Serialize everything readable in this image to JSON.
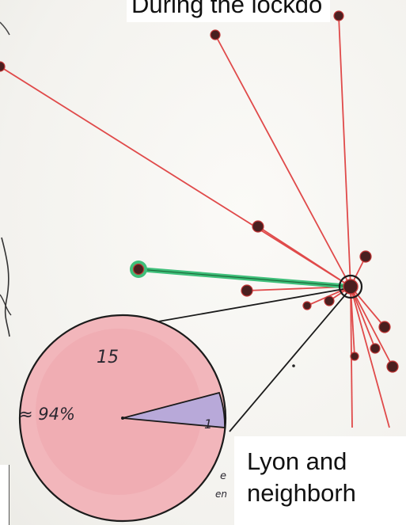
{
  "title_partial": "During the lockdo",
  "box_caption_line1": "Lyon and",
  "box_caption_line2": "neighborh",
  "pie": {
    "major_count": "15",
    "minor_count": "1",
    "percent_label": "≈ 94%"
  },
  "colors": {
    "paper": "#f6f5f1",
    "red_line": "#e04a4a",
    "green_line": "#3fbf7a",
    "dot": "#4a1f1f",
    "pie_fill": "#f2b6bb",
    "slice_fill": "#b8a9d9"
  }
}
